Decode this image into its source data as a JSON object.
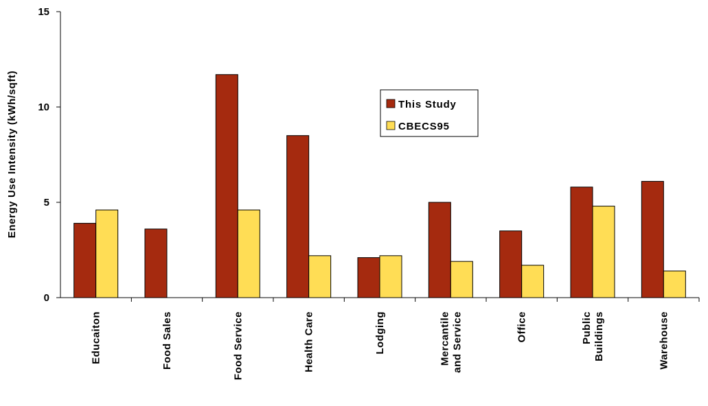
{
  "chart_data": {
    "type": "bar",
    "categories": [
      "Educaiton",
      "Food Sales",
      "Food Service",
      "Health Care",
      "Lodging",
      "Mercantile and Service",
      "Office",
      "Public Buildings",
      "Warehouse"
    ],
    "category_lines": [
      [
        "Educaiton"
      ],
      [
        "Food Sales"
      ],
      [
        "Food Service"
      ],
      [
        "Health Care"
      ],
      [
        "Lodging"
      ],
      [
        "Mercantile",
        "and Service"
      ],
      [
        "Office"
      ],
      [
        "Public",
        "Buildings"
      ],
      [
        "Warehouse"
      ]
    ],
    "series": [
      {
        "name": "This Study",
        "color": "#A52A0F",
        "values": [
          3.9,
          3.6,
          11.7,
          8.5,
          2.1,
          5.0,
          3.5,
          5.8,
          6.1
        ]
      },
      {
        "name": "CBECS95",
        "color": "#FFDD55",
        "values": [
          4.6,
          null,
          4.6,
          2.2,
          2.2,
          1.9,
          1.7,
          4.8,
          1.4
        ]
      }
    ],
    "ylabel": "Energy Use Intensity (kWh/sqft)",
    "xlabel": "",
    "title": "",
    "ylim": [
      0,
      15
    ],
    "yticks": [
      "0",
      "5",
      "10",
      "15"
    ],
    "grid": false,
    "legend_position": "center-right"
  }
}
